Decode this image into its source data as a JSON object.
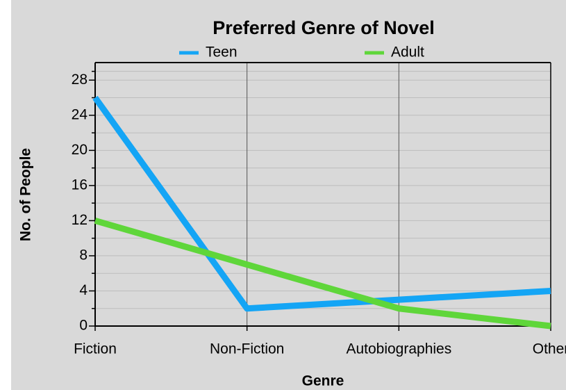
{
  "chart_data": {
    "type": "line",
    "title": "Preferred Genre of Novel",
    "x_label": "Genre",
    "y_label": "No. of People",
    "categories": [
      "Fiction",
      "Non-Fiction",
      "Autobiographies",
      "Other"
    ],
    "series": [
      {
        "name": "Teen",
        "color": "#14a5f5",
        "values": [
          26,
          2,
          3,
          4
        ]
      },
      {
        "name": "Adult",
        "color": "#5fd63a",
        "values": [
          12,
          7,
          2,
          0
        ]
      }
    ],
    "ylim": [
      0,
      30
    ],
    "yticks": [
      0,
      4,
      8,
      12,
      16,
      20,
      24,
      28
    ],
    "grid": true
  }
}
